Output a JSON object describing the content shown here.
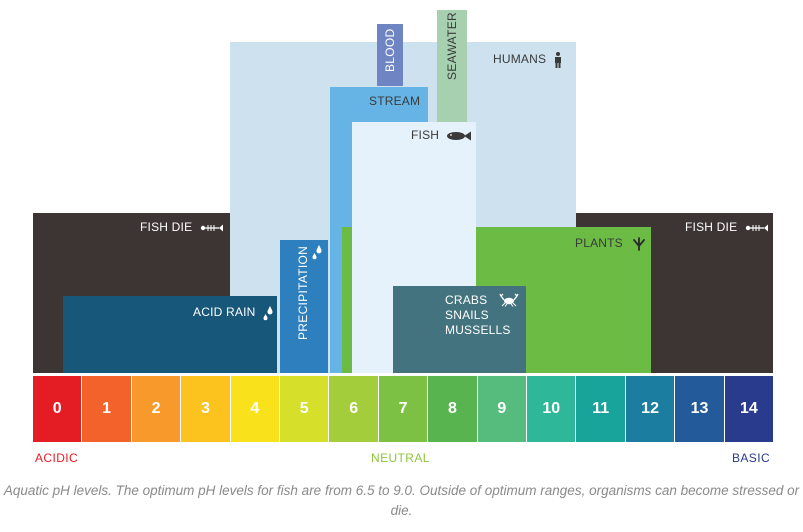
{
  "diagram": {
    "bars": [
      {
        "key": "fish_die_acidic",
        "label": "FISH DIE",
        "ph_min": 0,
        "ph_max": 4,
        "color": "#3d3434",
        "icon": "fish-skeleton-icon"
      },
      {
        "key": "fish_die_basic",
        "label": "FISH DIE",
        "ph_min": 11,
        "ph_max": 14,
        "color": "#3d3434",
        "icon": "fish-skeleton-icon"
      },
      {
        "key": "humans",
        "label": "HUMANS",
        "ph_min": 4,
        "ph_max": 11,
        "color": "#cde1ef",
        "icon": "person-icon"
      },
      {
        "key": "blood",
        "label": "BLOOD",
        "ph_min": 7,
        "ph_max": 7.5,
        "color": "#6f85c3",
        "icon": ""
      },
      {
        "key": "seawater",
        "label": "SEAWATER",
        "ph_min": 8.2,
        "ph_max": 8.8,
        "color": "#a7d0b1",
        "icon": ""
      },
      {
        "key": "stream",
        "label": "STREAM",
        "ph_min": 6,
        "ph_max": 8,
        "color": "#66b4e5",
        "icon": ""
      },
      {
        "key": "fish",
        "label": "FISH",
        "ph_min": 6.5,
        "ph_max": 9,
        "color": "#e6f2fb",
        "icon": "fish-icon"
      },
      {
        "key": "plants",
        "label": "PLANTS",
        "ph_min": 6.3,
        "ph_max": 12.3,
        "color": "#6cbb45",
        "icon": "plant-icon"
      },
      {
        "key": "acid_rain",
        "label": "ACID RAIN",
        "ph_min": 0.6,
        "ph_max": 5,
        "color": "#17577a",
        "icon": "raindrop-icon"
      },
      {
        "key": "precipitation",
        "label": "PRECIPITATION",
        "ph_min": 5,
        "ph_max": 6,
        "color": "#2d7fbd",
        "icon": "raindrop-icon"
      },
      {
        "key": "crabs",
        "label": "CRABS\nSNAILS\nMUSSELLS",
        "ph_min": 7.3,
        "ph_max": 10,
        "color": "#43737e",
        "icon": "crab-icon"
      }
    ],
    "scale": [
      {
        "value": "0",
        "color": "#e41d24"
      },
      {
        "value": "1",
        "color": "#f3622a"
      },
      {
        "value": "2",
        "color": "#f79a2b"
      },
      {
        "value": "3",
        "color": "#fcc21d"
      },
      {
        "value": "4",
        "color": "#f9e21b"
      },
      {
        "value": "5",
        "color": "#d6e02a"
      },
      {
        "value": "6",
        "color": "#a4cd3b"
      },
      {
        "value": "7",
        "color": "#7dc144"
      },
      {
        "value": "8",
        "color": "#58b44e"
      },
      {
        "value": "9",
        "color": "#56bc7d"
      },
      {
        "value": "10",
        "color": "#2fb79a"
      },
      {
        "value": "11",
        "color": "#18a39b"
      },
      {
        "value": "12",
        "color": "#1b7ea1"
      },
      {
        "value": "13",
        "color": "#235a9a"
      },
      {
        "value": "14",
        "color": "#283b8c"
      }
    ],
    "acidic_label": "ACIDIC",
    "neutral_label": "NEUTRAL",
    "basic_label": "BASIC",
    "acidic_color": "#e41d24",
    "neutral_color": "#8dc63f",
    "basic_color": "#283b8c"
  },
  "caption": "Aquatic pH levels. The optimum pH levels for fish are from 6.5 to 9.0. Outside of optimum ranges, organisms can become stressed or die."
}
